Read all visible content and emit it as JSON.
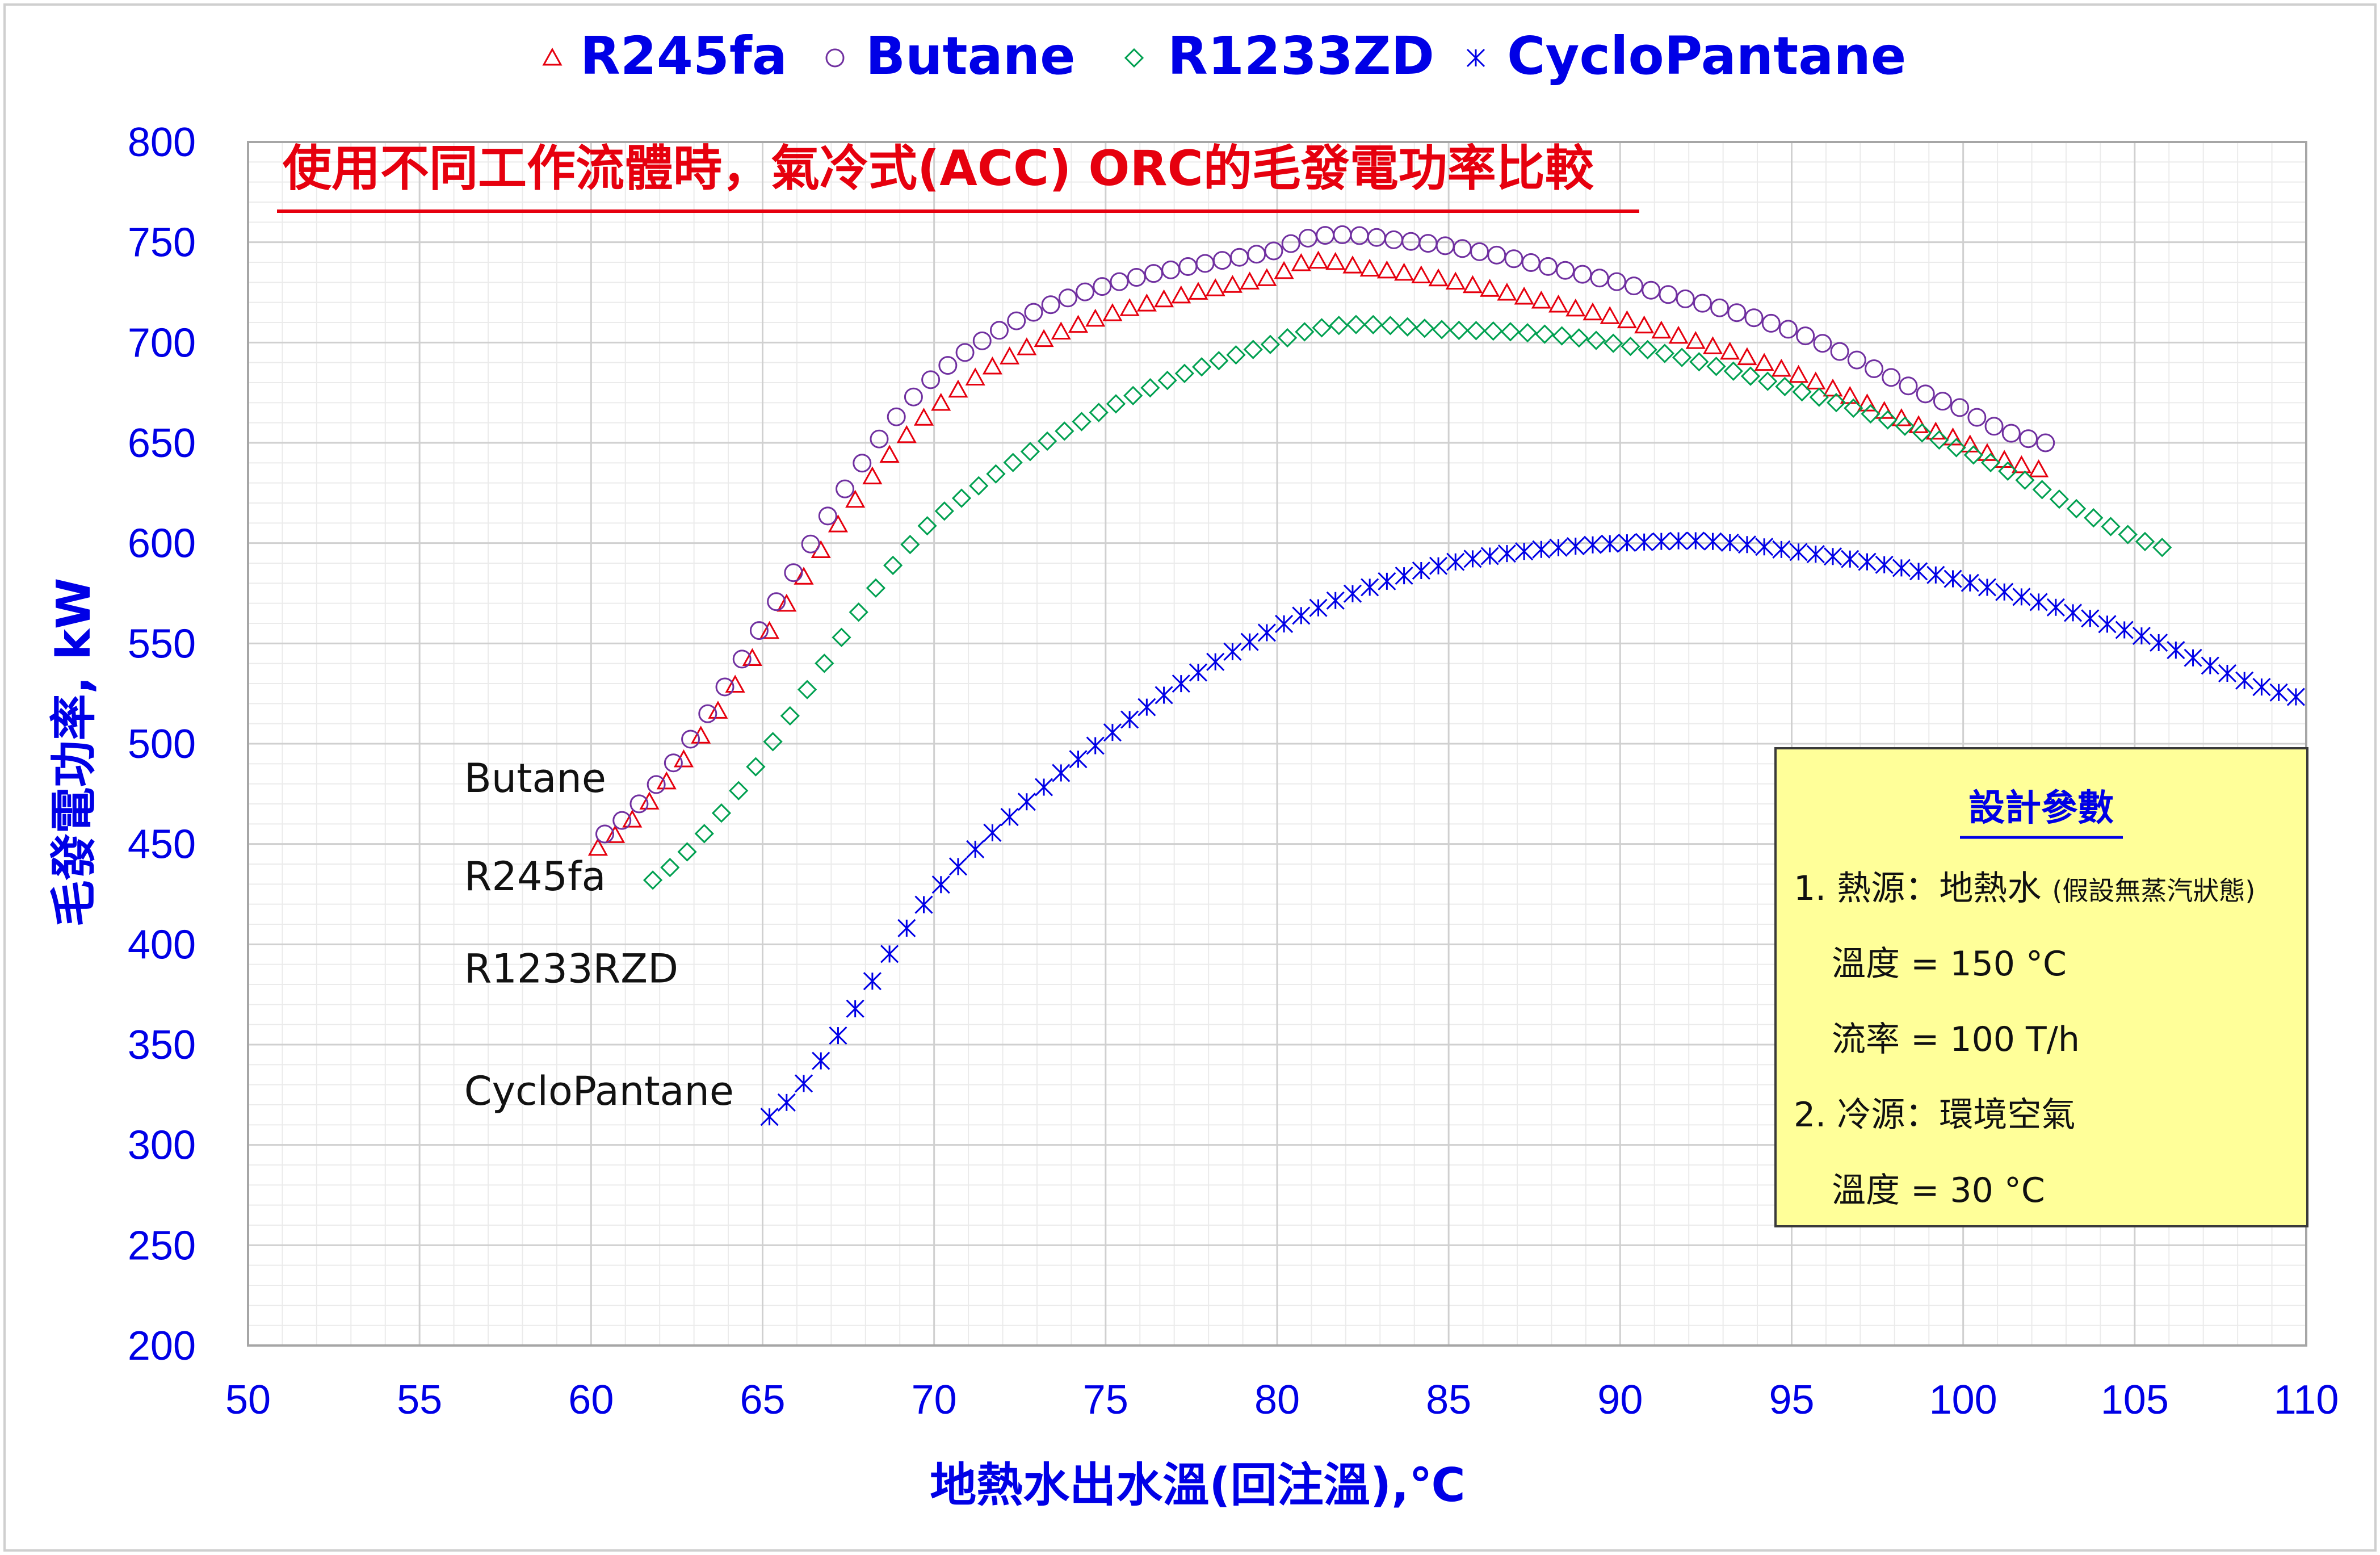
{
  "chart_data": {
    "type": "scatter",
    "title": "使用不同工作流體時，氣冷式(ACC) ORC的毛發電功率比較",
    "xlabel": "地熱水出水溫(回注溫),℃",
    "ylabel": "毛發電功率, kW",
    "xlim": [
      50,
      110
    ],
    "ylim": [
      200,
      800
    ],
    "x_ticks": [
      "50",
      "55",
      "60",
      "65",
      "70",
      "75",
      "80",
      "85",
      "90",
      "95",
      "100",
      "105",
      "110"
    ],
    "y_ticks": [
      "200",
      "250",
      "300",
      "350",
      "400",
      "450",
      "500",
      "550",
      "600",
      "650",
      "700",
      "750",
      "800"
    ],
    "grid": true,
    "legend_position": "top",
    "series": [
      {
        "name": "R245fa",
        "marker": "triangle",
        "color": "#e6000e",
        "x": [
          60.2,
          70,
          80,
          82.5,
          90,
          95,
          100,
          102.4
        ],
        "y": [
          448,
          667,
          733,
          737,
          712,
          685,
          651,
          636
        ],
        "curve": "dense"
      },
      {
        "name": "Butane",
        "marker": "circle",
        "color": "#7030a0",
        "x": [
          60.4,
          70,
          80,
          83.5,
          90,
          95,
          100,
          102.4
        ],
        "y": [
          455,
          683,
          746,
          751,
          730,
          706,
          667,
          650
        ],
        "curve": "dense"
      },
      {
        "name": "R1233ZD",
        "marker": "diamond",
        "color": "#00a050",
        "x": [
          61.8,
          70,
          80,
          85.5,
          90,
          95,
          100,
          106.2
        ],
        "y": [
          432,
          612,
          700,
          706,
          699,
          677,
          646,
          596
        ],
        "curve": "dense"
      },
      {
        "name": "CycloPantane",
        "marker": "asterisk",
        "color": "#0000e6",
        "x": [
          65.2,
          70,
          75,
          80,
          85,
          91.5,
          95,
          100,
          105,
          109.8
        ],
        "y": [
          314,
          426,
          503,
          558,
          590,
          601,
          596,
          581,
          555,
          523
        ],
        "curve": "dense"
      }
    ],
    "annotations": [
      {
        "text": "Butane",
        "x": 56.3,
        "y": 476
      },
      {
        "text": "R245fa",
        "x": 56.3,
        "y": 427
      },
      {
        "text": "R1233RZD",
        "x": 56.3,
        "y": 381
      },
      {
        "text": "CycloPantane",
        "x": 56.3,
        "y": 320
      }
    ],
    "info_box": {
      "title": "設計參數",
      "lines": [
        {
          "main": "1. 熱源：地熱水 ",
          "small": "(假設無蒸汽狀態)"
        },
        {
          "main": "溫度 = 150 °C",
          "small": ""
        },
        {
          "main": "流率 = 100 T/h",
          "small": ""
        },
        {
          "main": "2. 冷源：環境空氣",
          "small": ""
        },
        {
          "main": "溫度 = 30 °C",
          "small": ""
        }
      ]
    }
  }
}
